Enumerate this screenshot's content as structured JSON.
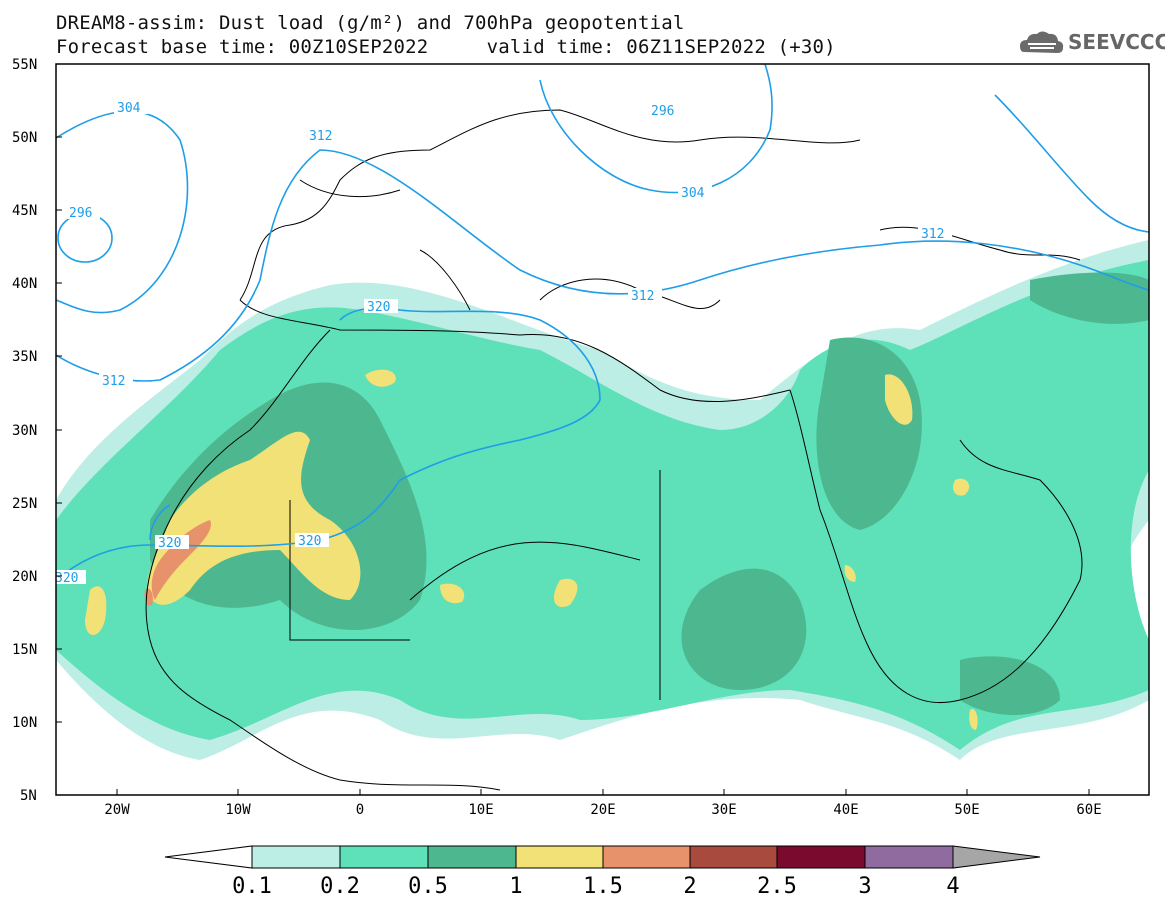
{
  "header": {
    "title_line1": "DREAM8-assim: Dust load (g/m²) and 700hPa geopotential",
    "title_line2": "Forecast base time: 00Z10SEP2022     valid time: 06Z11SEP2022 (+30)"
  },
  "logo": {
    "text": "SEEVCCC",
    "icon": "cloud-icon"
  },
  "map": {
    "lat_labels": [
      "55N",
      "50N",
      "45N",
      "40N",
      "35N",
      "30N",
      "25N",
      "20N",
      "15N",
      "10N",
      "5N"
    ],
    "lon_labels": [
      "20W",
      "10W",
      "0",
      "10E",
      "20E",
      "30E",
      "40E",
      "50E",
      "60E"
    ],
    "contour_labels": [
      "304",
      "296",
      "296",
      "312",
      "312",
      "304",
      "312",
      "312",
      "320",
      "320",
      "320",
      "320"
    ],
    "contour_color": "#1e9ee8"
  },
  "colorbar": {
    "labels": [
      "0.1",
      "0.2",
      "0.5",
      "1",
      "1.5",
      "2",
      "2.5",
      "3",
      "4"
    ],
    "colors": [
      "#bdeee6",
      "#5ee0b8",
      "#4db890",
      "#f2e176",
      "#e8926b",
      "#a84a3e",
      "#7a0a2e",
      "#8f6ba0",
      "#a6a6a6"
    ]
  }
}
